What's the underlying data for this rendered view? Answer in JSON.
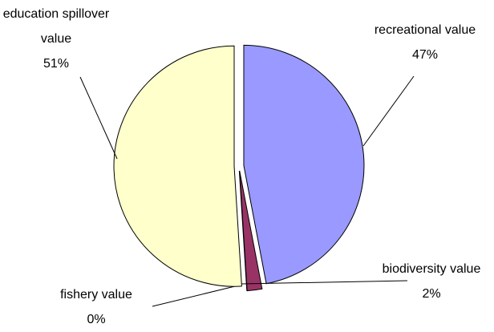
{
  "chart_data": {
    "type": "pie",
    "categories": [
      "recreational value",
      "biodiversity value",
      "fishery value",
      "education spillover value"
    ],
    "values": [
      47,
      2,
      0,
      51
    ],
    "value_labels": [
      "47%",
      "2%",
      "0%",
      "51%"
    ],
    "colors": [
      "#9999ff",
      "#993366",
      "#ccffff",
      "#ffffcc"
    ]
  }
}
